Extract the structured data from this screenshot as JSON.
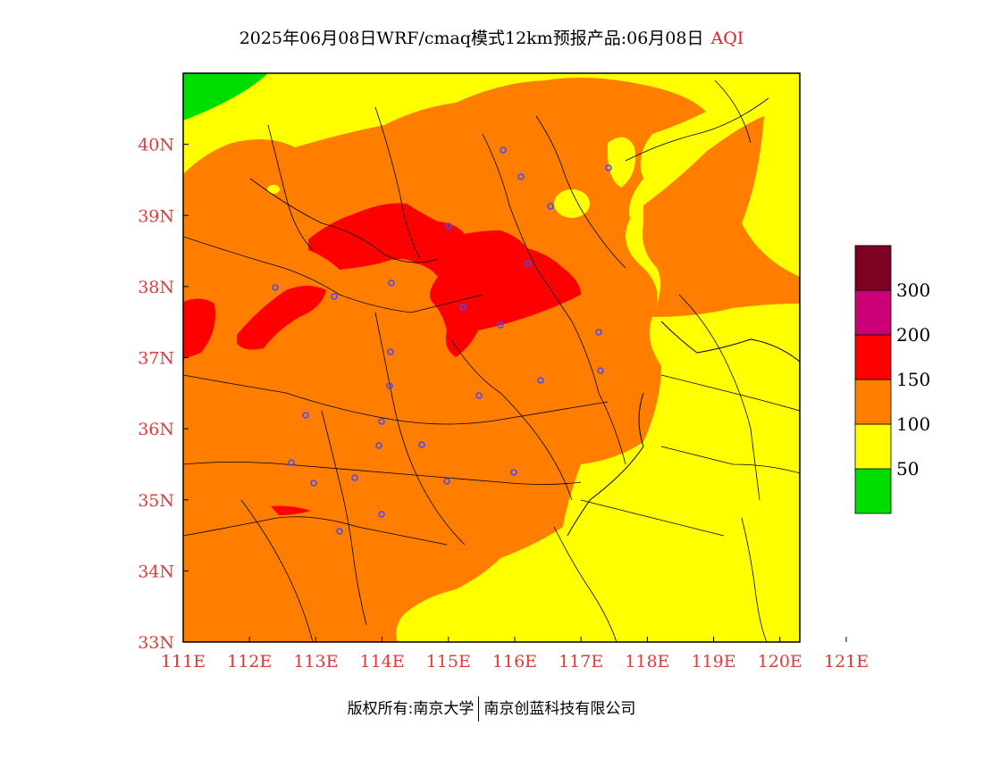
{
  "title": {
    "main": "2025年06月08日WRF/cmaq模式12km预报产品:06月08日",
    "variable": "AQI"
  },
  "axes": {
    "lon_ticks": [
      "111E",
      "112E",
      "113E",
      "114E",
      "115E",
      "116E",
      "117E",
      "118E",
      "119E",
      "120E",
      "121E"
    ],
    "lat_ticks": [
      "33N",
      "34N",
      "35N",
      "36N",
      "37N",
      "38N",
      "39N",
      "40N"
    ],
    "lon_range": [
      111.0,
      120.3
    ],
    "lat_range": [
      33.0,
      41.0
    ]
  },
  "legend": {
    "levels": [
      {
        "label": "",
        "color": "#00dd00"
      },
      {
        "label": "50",
        "color": "#ffff00"
      },
      {
        "label": "100",
        "color": "#ff7e00"
      },
      {
        "label": "150",
        "color": "#ff0000"
      },
      {
        "label": "200",
        "color": "#cc0077"
      },
      {
        "label": "300",
        "color": "#7e0023"
      }
    ]
  },
  "copyright": {
    "owner": "版权所有:南京大学",
    "partner": "南京创蓝科技有限公司"
  },
  "colors": {
    "good": "#00dd00",
    "moderate": "#ffff00",
    "unhealthy_sensitive": "#ff7e00",
    "unhealthy": "#ff0000",
    "very_unhealthy": "#cc0077",
    "hazardous": "#7e0023",
    "station": "#4a4aff",
    "axis_text": "#e03a3a"
  }
}
